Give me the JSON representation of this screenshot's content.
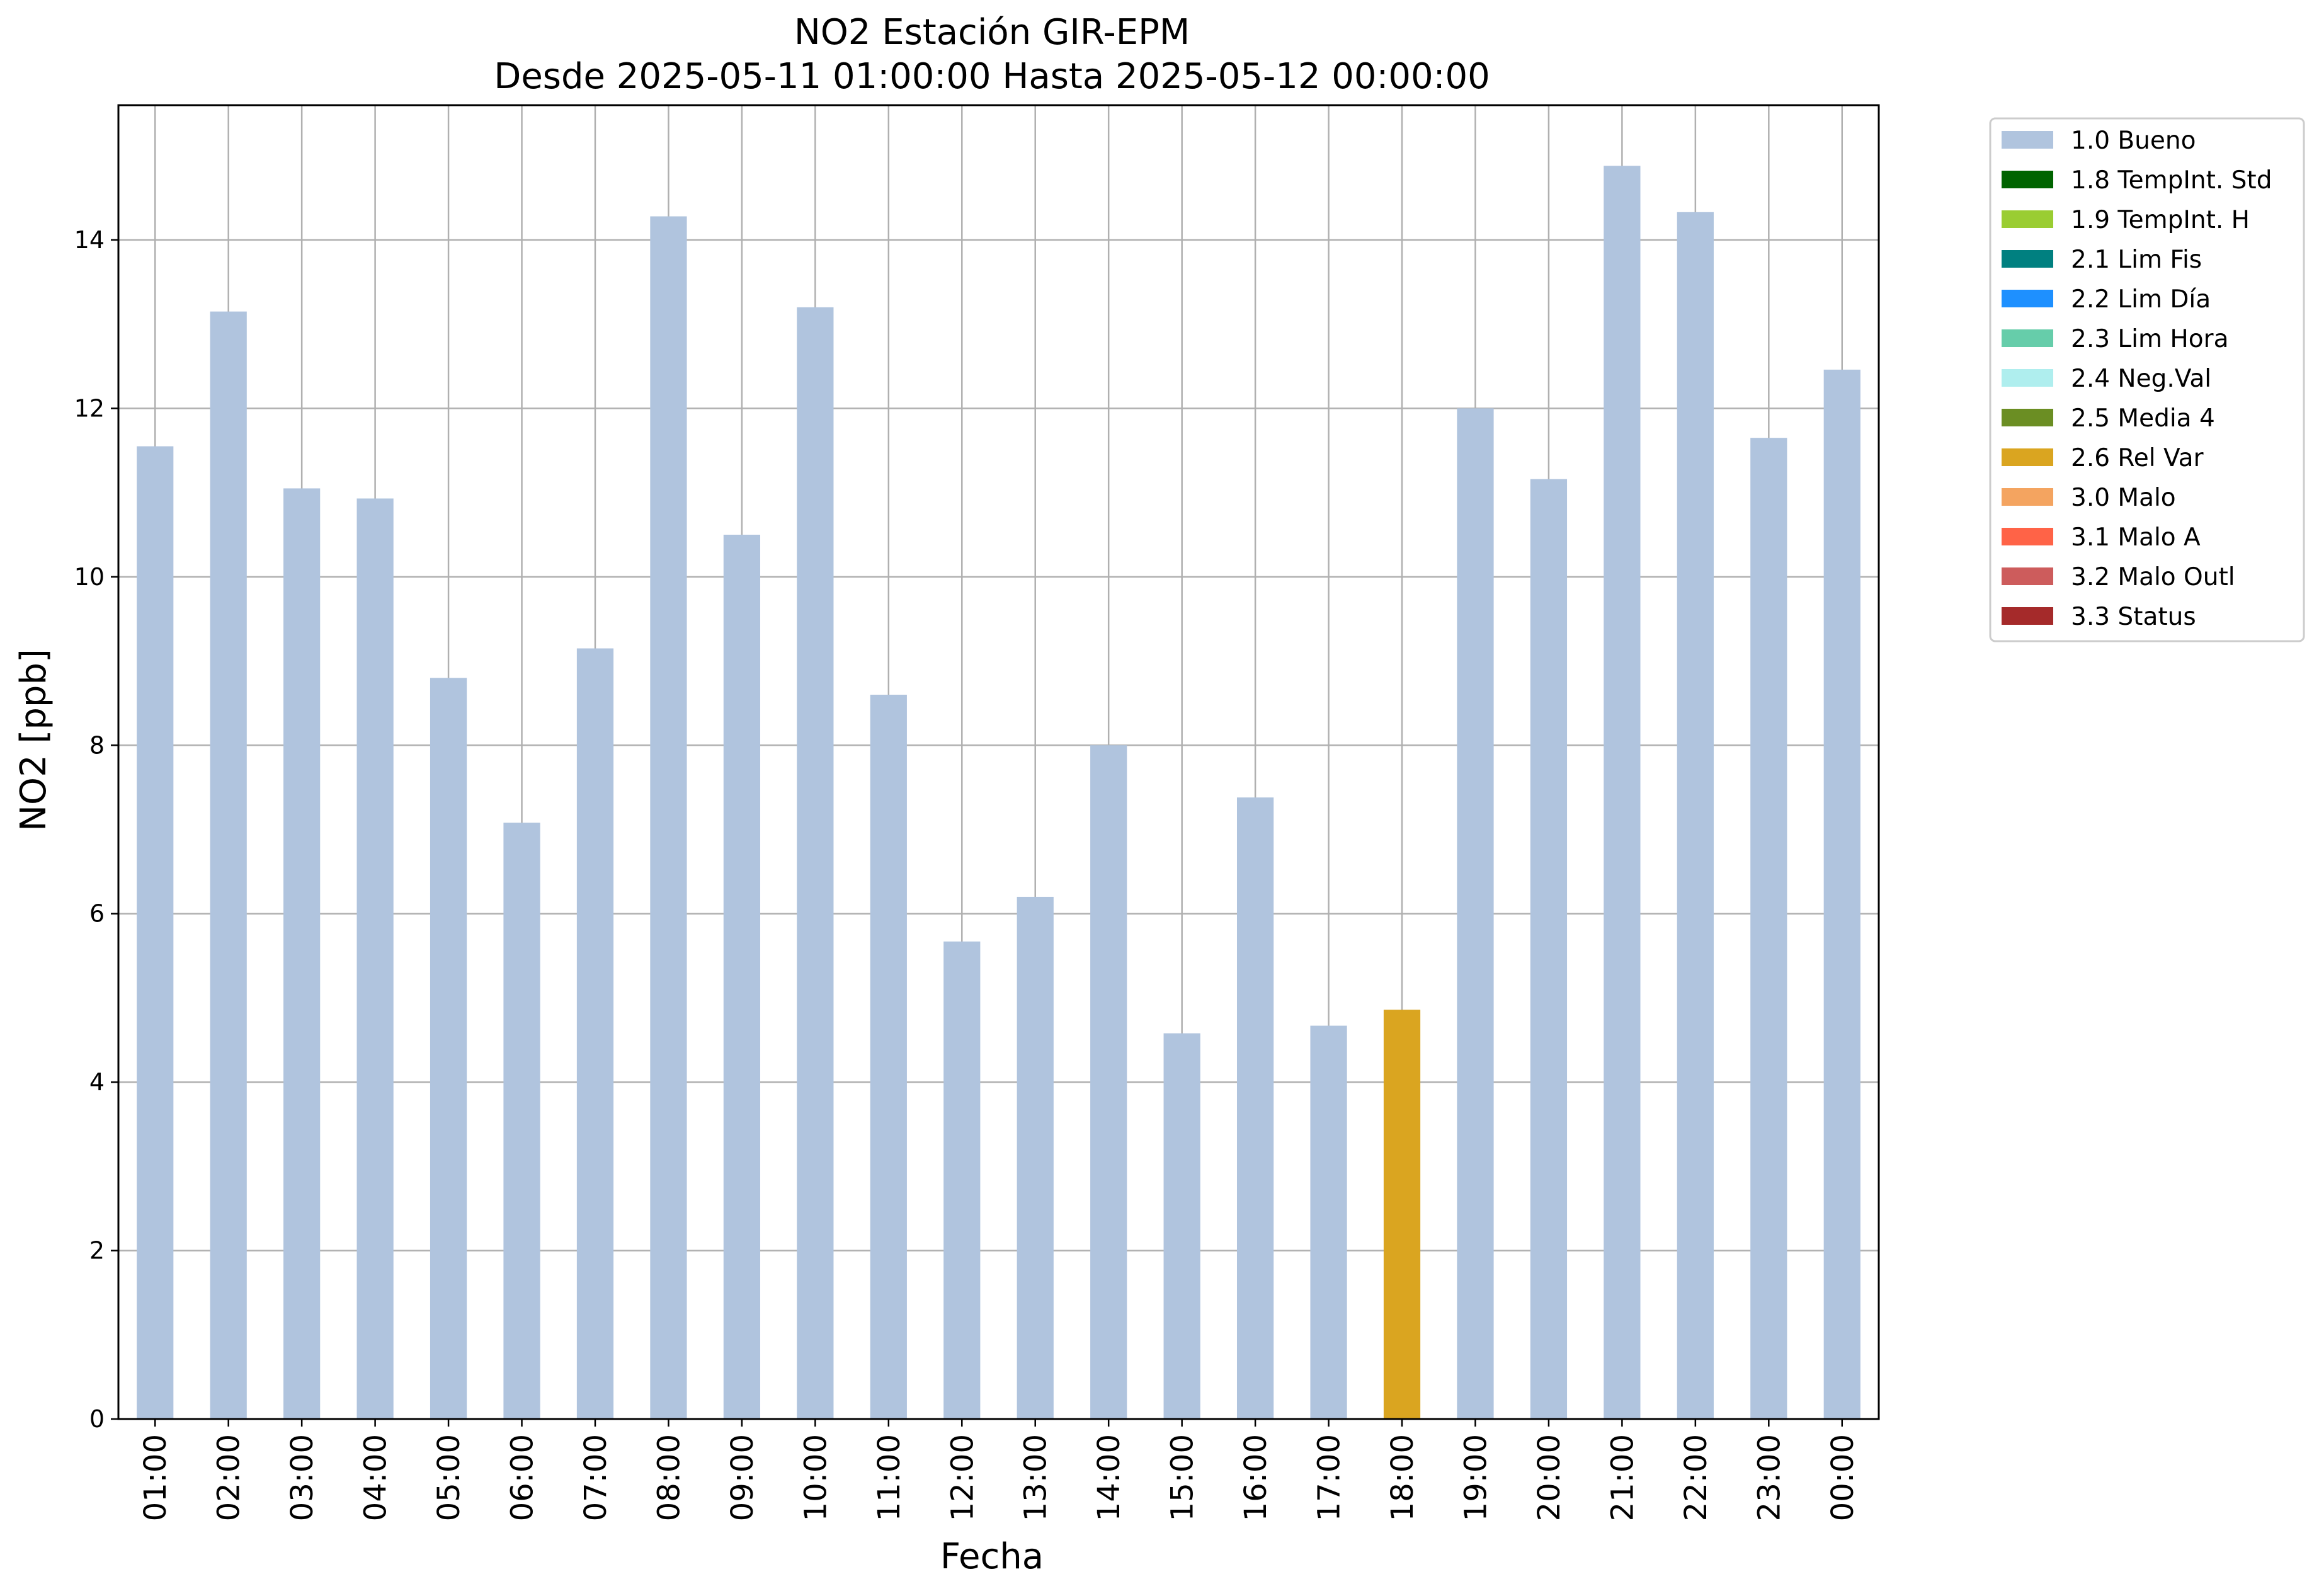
{
  "chart_data": {
    "type": "bar",
    "title": "NO2 Estación GIR-EPM",
    "subtitle": "Desde 2025-05-11 01:00:00 Hasta 2025-05-12 00:00:00",
    "xlabel": "Fecha",
    "ylabel": "NO2 [ppb]",
    "ylim": [
      0,
      15.6
    ],
    "yticks": [
      0,
      2,
      4,
      6,
      8,
      10,
      12,
      14
    ],
    "grid": true,
    "legend_position": "outside-top-right",
    "categories": [
      "01:00",
      "02:00",
      "03:00",
      "04:00",
      "05:00",
      "06:00",
      "07:00",
      "08:00",
      "09:00",
      "10:00",
      "11:00",
      "12:00",
      "13:00",
      "14:00",
      "15:00",
      "16:00",
      "17:00",
      "18:00",
      "19:00",
      "20:00",
      "21:00",
      "22:00",
      "23:00",
      "00:00"
    ],
    "values": [
      11.55,
      13.15,
      11.05,
      10.93,
      8.8,
      7.08,
      9.15,
      14.28,
      10.5,
      13.2,
      8.6,
      5.67,
      6.2,
      8.0,
      4.58,
      7.38,
      4.67,
      4.86,
      12.0,
      11.16,
      14.88,
      14.33,
      11.65,
      12.46
    ],
    "flags": [
      "1.0 Bueno",
      "1.0 Bueno",
      "1.0 Bueno",
      "1.0 Bueno",
      "1.0 Bueno",
      "1.0 Bueno",
      "1.0 Bueno",
      "1.0 Bueno",
      "1.0 Bueno",
      "1.0 Bueno",
      "1.0 Bueno",
      "1.0 Bueno",
      "1.0 Bueno",
      "1.0 Bueno",
      "1.0 Bueno",
      "1.0 Bueno",
      "1.0 Bueno",
      "2.6 Rel Var",
      "1.0 Bueno",
      "1.0 Bueno",
      "1.0 Bueno",
      "1.0 Bueno",
      "1.0 Bueno",
      "1.0 Bueno"
    ],
    "legend": [
      {
        "label": "1.0 Bueno",
        "color": "#b0c4de"
      },
      {
        "label": "1.8 TempInt. Std",
        "color": "#006400"
      },
      {
        "label": "1.9 TempInt. H",
        "color": "#9acd32"
      },
      {
        "label": "2.1 Lim Fis",
        "color": "#008080"
      },
      {
        "label": "2.2 Lim Día",
        "color": "#1e90ff"
      },
      {
        "label": "2.3 Lim Hora",
        "color": "#66cdaa"
      },
      {
        "label": "2.4 Neg.Val",
        "color": "#afeeee"
      },
      {
        "label": "2.5 Media 4",
        "color": "#6b8e23"
      },
      {
        "label": "2.6 Rel Var",
        "color": "#daa520"
      },
      {
        "label": "3.0 Malo",
        "color": "#f4a460"
      },
      {
        "label": "3.1 Malo A",
        "color": "#ff6347"
      },
      {
        "label": "3.2 Malo Outl",
        "color": "#cd5c5c"
      },
      {
        "label": "3.3 Status",
        "color": "#a52a2a"
      }
    ]
  }
}
